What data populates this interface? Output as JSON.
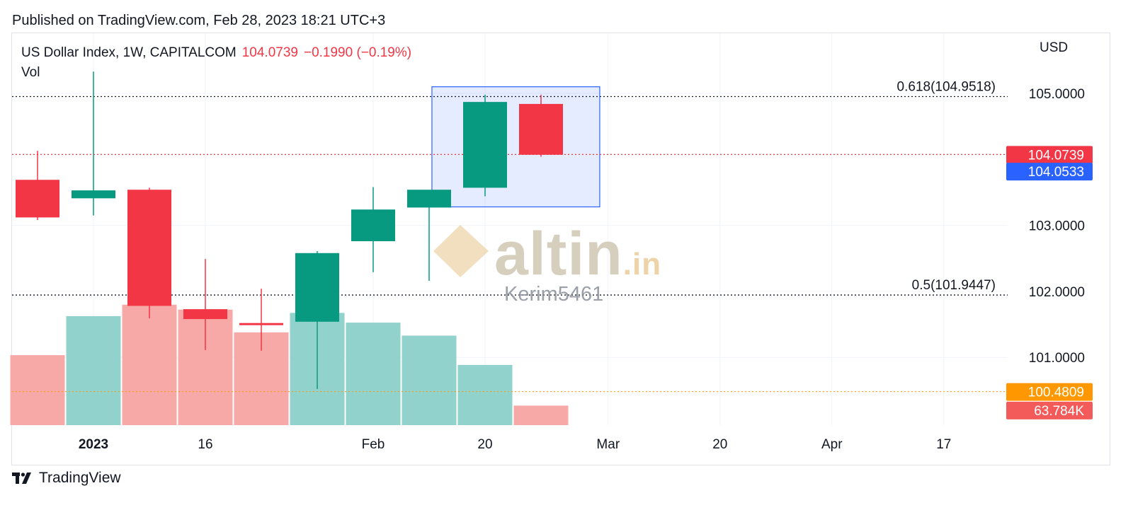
{
  "published": "Published on TradingView.com, Feb 28, 2023 18:21 UTC+3",
  "legend": {
    "symbol": "US Dollar Index, 1W, CAPITALCOM",
    "price": "104.0739",
    "change": "−0.1990 (−0.19%)",
    "vol_label": "Vol"
  },
  "currency": "USD",
  "footer": {
    "brand": "TradingView"
  },
  "watermark": {
    "text": "altin",
    "suffix": ".in",
    "user": "Kerim5461"
  },
  "colors": {
    "up": "#089981",
    "down": "#f23645",
    "vol_up": "#92d2cc",
    "vol_down": "#f7a9a7",
    "fib": "#131722",
    "blue": "#2962ff",
    "orange": "#ff9800",
    "selection": "#2962ff"
  },
  "chart_data": {
    "type": "candlestick",
    "interval": "1W",
    "ylim": [
      100.0,
      105.7
    ],
    "x_ticks": [
      {
        "label": "2023",
        "bold": true,
        "index": 1
      },
      {
        "label": "16",
        "index": 3
      },
      {
        "label": "Feb",
        "index": 6
      },
      {
        "label": "20",
        "index": 8
      },
      {
        "label": "Mar",
        "index": 10.2
      },
      {
        "label": "20",
        "index": 12.2
      },
      {
        "label": "Apr",
        "index": 14.2
      },
      {
        "label": "17",
        "index": 16.2
      }
    ],
    "y_ticks": [
      "105.0000",
      "103.0000",
      "102.0000",
      "101.0000"
    ],
    "candles": [
      {
        "open": 103.69,
        "high": 104.13,
        "low": 103.08,
        "close": 103.12
      },
      {
        "open": 103.41,
        "high": 105.33,
        "low": 103.15,
        "close": 103.53
      },
      {
        "open": 103.54,
        "high": 103.57,
        "low": 101.59,
        "close": 101.78
      },
      {
        "open": 101.73,
        "high": 102.49,
        "low": 101.11,
        "close": 101.58
      },
      {
        "open": 101.52,
        "high": 102.04,
        "low": 101.1,
        "close": 101.49
      },
      {
        "open": 101.54,
        "high": 102.61,
        "low": 100.52,
        "close": 102.58
      },
      {
        "open": 102.76,
        "high": 103.58,
        "low": 102.29,
        "close": 103.24
      },
      {
        "open": 103.27,
        "high": 103.53,
        "low": 102.16,
        "close": 103.54
      },
      {
        "open": 103.57,
        "high": 104.98,
        "low": 103.44,
        "close": 104.87
      },
      {
        "open": 104.84,
        "high": 104.98,
        "low": 104.04,
        "close": 104.07
      }
    ],
    "volume": [
      {
        "value": 0.43,
        "dir": "down"
      },
      {
        "value": 0.67,
        "dir": "up"
      },
      {
        "value": 0.74,
        "dir": "down"
      },
      {
        "value": 0.71,
        "dir": "down"
      },
      {
        "value": 0.57,
        "dir": "down"
      },
      {
        "value": 0.69,
        "dir": "up"
      },
      {
        "value": 0.63,
        "dir": "up"
      },
      {
        "value": 0.55,
        "dir": "up"
      },
      {
        "value": 0.37,
        "dir": "up"
      },
      {
        "value": 0.12,
        "dir": "down"
      }
    ],
    "fib_levels": [
      {
        "label": "0.618(104.9518)",
        "price": 104.9518
      },
      {
        "label": "0.5(101.9447)",
        "price": 101.9447
      }
    ],
    "price_line": {
      "price": 104.0739
    },
    "orange_line": {
      "price": 100.4809
    },
    "badges": [
      {
        "text": "104.0739",
        "color": "#f23645",
        "price": 104.0739
      },
      {
        "text": "104.0533",
        "color": "#2962ff",
        "price": 103.82
      },
      {
        "text": "100.4809",
        "color": "#ff9800",
        "price": 100.4809
      },
      {
        "text": "63.784K",
        "color": "#f35a5a",
        "price": 100.2
      }
    ],
    "selection_box": {
      "from_index": 7.05,
      "to_index": 10.05,
      "top_price": 105.1,
      "bottom_price": 103.28
    }
  }
}
